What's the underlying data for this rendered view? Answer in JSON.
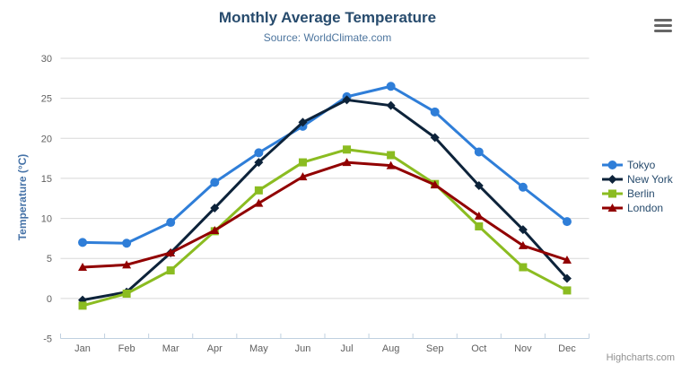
{
  "credits": {
    "label": "Highcharts.com"
  },
  "icons": {
    "export_menu": "hamburger"
  },
  "colors": {
    "title": "#274b6d",
    "subtitle": "#4d759e",
    "axis_label": "#606060",
    "axis_title": "#4572a7",
    "grid_line": "#d8d8d8",
    "axis_line": "#c0d0e0",
    "legend_text": "#274b6d",
    "credits_text": "#909090",
    "menu_icon": "#666666",
    "background": "#ffffff"
  },
  "chart_data": {
    "type": "line",
    "title": "Monthly Average Temperature",
    "subtitle": "Source: WorldClimate.com",
    "categories": [
      "Jan",
      "Feb",
      "Mar",
      "Apr",
      "May",
      "Jun",
      "Jul",
      "Aug",
      "Sep",
      "Oct",
      "Nov",
      "Dec"
    ],
    "xlabel": "",
    "ylabel": "Temperature (°C)",
    "ylim": [
      -5,
      30
    ],
    "ytick_interval": 5,
    "grid": true,
    "legend_position": "right",
    "series": [
      {
        "name": "Tokyo",
        "color": "#2f7ed8",
        "marker": "circle",
        "values": [
          7.0,
          6.9,
          9.5,
          14.5,
          18.2,
          21.5,
          25.2,
          26.5,
          23.3,
          18.3,
          13.9,
          9.6
        ]
      },
      {
        "name": "New York",
        "color": "#0d233a",
        "marker": "diamond",
        "values": [
          -0.2,
          0.8,
          5.7,
          11.3,
          17.0,
          22.0,
          24.8,
          24.1,
          20.1,
          14.1,
          8.6,
          2.5
        ]
      },
      {
        "name": "Berlin",
        "color": "#8bbc21",
        "marker": "square",
        "values": [
          -0.9,
          0.6,
          3.5,
          8.4,
          13.5,
          17.0,
          18.6,
          17.9,
          14.3,
          9.0,
          3.9,
          1.0
        ]
      },
      {
        "name": "London",
        "color": "#910000",
        "marker": "triangle",
        "values": [
          3.9,
          4.2,
          5.7,
          8.5,
          11.9,
          15.2,
          17.0,
          16.6,
          14.2,
          10.3,
          6.6,
          4.8
        ]
      }
    ]
  }
}
